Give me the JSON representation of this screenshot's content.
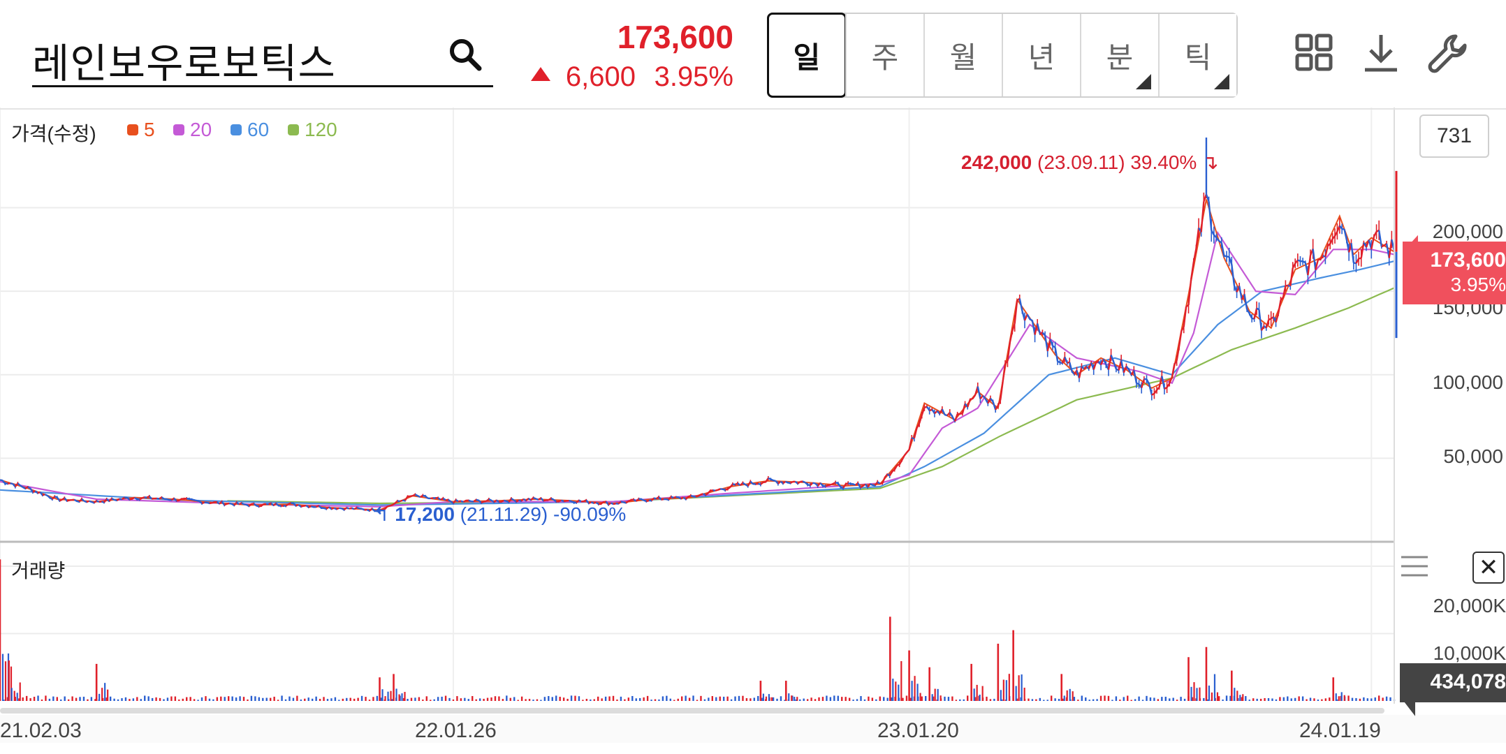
{
  "header": {
    "stock_name": "레인보우로보틱스",
    "current_price": "173,600",
    "change_abs": "6,600",
    "change_pct": "3.95%",
    "direction": "up",
    "tabs": [
      {
        "label": "일",
        "active": true,
        "has_menu": false
      },
      {
        "label": "주",
        "active": false,
        "has_menu": false
      },
      {
        "label": "월",
        "active": false,
        "has_menu": false
      },
      {
        "label": "년",
        "active": false,
        "has_menu": false
      },
      {
        "label": "분",
        "active": false,
        "has_menu": true
      },
      {
        "label": "틱",
        "active": false,
        "has_menu": true
      }
    ],
    "icons": [
      "search-icon",
      "grid-icon",
      "download-icon",
      "wrench-icon"
    ]
  },
  "colors": {
    "up": "#e0202a",
    "down": "#2a5fd0",
    "ma5": "#e8501e",
    "ma20": "#c45ad6",
    "ma60": "#4a8fe0",
    "ma120": "#8cba50"
  },
  "chart_data": {
    "type": "line",
    "panel_price": {
      "label": "가격(수정)",
      "legend": [
        {
          "name": "5",
          "color": "#e8501e"
        },
        {
          "name": "20",
          "color": "#c45ad6"
        },
        {
          "name": "60",
          "color": "#4a8fe0"
        },
        {
          "name": "120",
          "color": "#8cba50"
        }
      ],
      "bar_count": "731",
      "yticks": [
        "200,000",
        "150,000",
        "100,000",
        "50,000"
      ],
      "ytick_values": [
        200000,
        150000,
        100000,
        50000
      ],
      "ylim": [
        0,
        260000
      ],
      "x_range": [
        "2021-02-03",
        "2024-02-06"
      ],
      "current_price_label": "173,600",
      "current_pct_label": "3.95%",
      "high_annotation": {
        "price": "242,000",
        "date": "(23.09.11)",
        "pct": "39.40%",
        "x": "2023-09-11",
        "y": 242000
      },
      "low_annotation": {
        "price": "17,200",
        "date": "(21.11.29)",
        "pct": "-90.09%",
        "x": "2021-11-29",
        "y": 17200
      },
      "close_points": [
        [
          "2021-02-03",
          37000
        ],
        [
          "2021-02-25",
          32000
        ],
        [
          "2021-03-20",
          25500
        ],
        [
          "2021-04-20",
          24000
        ],
        [
          "2021-05-20",
          26500
        ],
        [
          "2021-06-20",
          25500
        ],
        [
          "2021-07-20",
          23500
        ],
        [
          "2021-08-20",
          22000
        ],
        [
          "2021-09-20",
          22500
        ],
        [
          "2021-10-20",
          20500
        ],
        [
          "2021-11-29",
          19000
        ],
        [
          "2021-12-25",
          27500
        ],
        [
          "2022-01-26",
          24000
        ],
        [
          "2022-03-01",
          24500
        ],
        [
          "2022-04-01",
          25500
        ],
        [
          "2022-05-01",
          24500
        ],
        [
          "2022-06-01",
          23000
        ],
        [
          "2022-07-01",
          25500
        ],
        [
          "2022-08-01",
          26500
        ],
        [
          "2022-09-01",
          33000
        ],
        [
          "2022-10-01",
          36500
        ],
        [
          "2022-11-01",
          35500
        ],
        [
          "2022-12-01",
          33500
        ],
        [
          "2022-12-28",
          34500
        ],
        [
          "2023-01-20",
          55000
        ],
        [
          "2023-02-01",
          83000
        ],
        [
          "2023-02-25",
          73000
        ],
        [
          "2023-03-15",
          90000
        ],
        [
          "2023-03-31",
          80000
        ],
        [
          "2023-04-15",
          145000
        ],
        [
          "2023-05-15",
          112000
        ],
        [
          "2023-06-01",
          100000
        ],
        [
          "2023-06-20",
          110000
        ],
        [
          "2023-07-10",
          103000
        ],
        [
          "2023-07-30",
          92000
        ],
        [
          "2023-08-15",
          98000
        ],
        [
          "2023-08-28",
          148000
        ],
        [
          "2023-09-11",
          205000
        ],
        [
          "2023-09-25",
          170000
        ],
        [
          "2023-10-15",
          138000
        ],
        [
          "2023-11-01",
          128000
        ],
        [
          "2023-11-20",
          163000
        ],
        [
          "2023-12-10",
          170000
        ],
        [
          "2023-12-25",
          195000
        ],
        [
          "2024-01-05",
          172000
        ],
        [
          "2024-01-19",
          182000
        ],
        [
          "2024-02-06",
          173600
        ]
      ],
      "ma20_points": [
        [
          "2021-02-03",
          36000
        ],
        [
          "2021-04-20",
          25500
        ],
        [
          "2021-08-20",
          22500
        ],
        [
          "2021-11-29",
          21000
        ],
        [
          "2022-01-26",
          24000
        ],
        [
          "2022-06-01",
          24000
        ],
        [
          "2022-09-01",
          29000
        ],
        [
          "2022-12-28",
          35000
        ],
        [
          "2023-01-20",
          40000
        ],
        [
          "2023-02-15",
          68000
        ],
        [
          "2023-03-15",
          80000
        ],
        [
          "2023-04-25",
          130000
        ],
        [
          "2023-06-01",
          110000
        ],
        [
          "2023-07-20",
          102000
        ],
        [
          "2023-08-15",
          95000
        ],
        [
          "2023-09-01",
          125000
        ],
        [
          "2023-09-20",
          185000
        ],
        [
          "2023-10-20",
          150000
        ],
        [
          "2023-11-20",
          148000
        ],
        [
          "2023-12-20",
          175000
        ],
        [
          "2024-01-19",
          175000
        ],
        [
          "2024-02-06",
          172000
        ]
      ],
      "ma60_points": [
        [
          "2021-02-03",
          31000
        ],
        [
          "2021-06-20",
          25000
        ],
        [
          "2021-11-29",
          22000
        ],
        [
          "2022-06-01",
          24000
        ],
        [
          "2022-12-28",
          33000
        ],
        [
          "2023-02-01",
          45000
        ],
        [
          "2023-03-20",
          65000
        ],
        [
          "2023-05-10",
          100000
        ],
        [
          "2023-07-01",
          110000
        ],
        [
          "2023-08-15",
          100000
        ],
        [
          "2023-09-20",
          130000
        ],
        [
          "2023-10-25",
          150000
        ],
        [
          "2023-12-10",
          158000
        ],
        [
          "2024-01-10",
          163000
        ],
        [
          "2024-02-06",
          168000
        ]
      ],
      "ma120_points": [
        [
          "2021-08-01",
          24500
        ],
        [
          "2021-11-29",
          23000
        ],
        [
          "2022-06-01",
          24000
        ],
        [
          "2022-12-28",
          32000
        ],
        [
          "2023-02-15",
          45000
        ],
        [
          "2023-04-01",
          63000
        ],
        [
          "2023-06-01",
          85000
        ],
        [
          "2023-08-15",
          98000
        ],
        [
          "2023-10-01",
          115000
        ],
        [
          "2023-11-20",
          128000
        ],
        [
          "2024-01-01",
          140000
        ],
        [
          "2024-02-06",
          152000
        ]
      ]
    },
    "panel_volume": {
      "label": "거래량",
      "yticks": [
        "20,000K",
        "10,000K"
      ],
      "ytick_values": [
        20000,
        10000
      ],
      "ylim": [
        0,
        23000
      ],
      "current_volume_label": "434,078",
      "spikes": [
        [
          "2021-02-03",
          21000
        ],
        [
          "2021-02-10",
          6000
        ],
        [
          "2021-04-20",
          5500
        ],
        [
          "2021-11-29",
          3500
        ],
        [
          "2021-12-10",
          4000
        ],
        [
          "2022-09-25",
          3000
        ],
        [
          "2022-10-15",
          3000
        ],
        [
          "2023-01-05",
          12500
        ],
        [
          "2023-01-20",
          7500
        ],
        [
          "2023-02-05",
          5000
        ],
        [
          "2023-03-10",
          5500
        ],
        [
          "2023-03-31",
          8500
        ],
        [
          "2023-04-12",
          10500
        ],
        [
          "2023-05-20",
          4000
        ],
        [
          "2023-08-28",
          6500
        ],
        [
          "2023-09-11",
          8000
        ],
        [
          "2023-10-01",
          4500
        ],
        [
          "2023-12-20",
          3500
        ]
      ]
    },
    "x_ticks": [
      "21.02.03",
      "22.01.26",
      "23.01.20",
      "24.01.19"
    ],
    "x_tick_dates": [
      "2021-02-03",
      "2022-01-26",
      "2023-01-20",
      "2024-01-19"
    ]
  }
}
